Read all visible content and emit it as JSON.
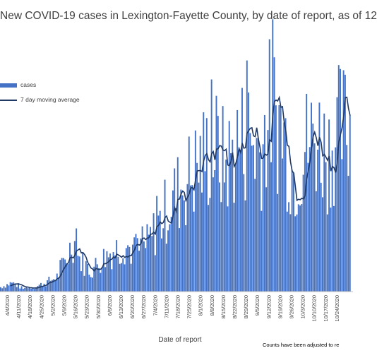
{
  "chart_data": {
    "type": "bar",
    "title": "New COVID-19 cases in Lexington-Fayette County, by date of report, as of 12",
    "xlabel": "Date of report",
    "ylabel": "",
    "footnote": "Counts have been adjusted to re",
    "grid": false,
    "legend_position": "top-left",
    "x_tick_labels": [
      "4/4/2020",
      "4/11/2020",
      "4/18/2020",
      "4/25/2020",
      "5/2/2020",
      "5/9/2020",
      "5/16/2020",
      "5/23/2020",
      "5/30/2020",
      "6/6/2020",
      "6/13/2020",
      "6/20/2020",
      "6/27/2020",
      "7/4/2020",
      "7/11/2020",
      "7/18/2020",
      "7/25/2020",
      "8/1/2020",
      "8/8/2020",
      "8/15/2020",
      "8/22/2020",
      "8/29/2020",
      "9/5/2020",
      "9/12/2020",
      "9/19/2020",
      "9/26/2020",
      "10/3/2020",
      "10/10/2020",
      "10/17/2020",
      "10/24/2020"
    ],
    "series": [
      {
        "name": "cases",
        "kind": "bar",
        "color": "#4472C4",
        "anchors": [
          [
            0,
            3
          ],
          [
            7,
            6
          ],
          [
            14,
            2
          ],
          [
            21,
            3
          ],
          [
            28,
            6
          ],
          [
            35,
            10
          ],
          [
            42,
            25
          ],
          [
            45,
            35
          ],
          [
            49,
            22
          ],
          [
            56,
            14
          ],
          [
            63,
            22
          ],
          [
            70,
            28
          ],
          [
            77,
            32
          ],
          [
            84,
            26
          ],
          [
            91,
            32
          ],
          [
            98,
            45
          ],
          [
            105,
            60
          ],
          [
            112,
            70
          ],
          [
            119,
            80
          ],
          [
            126,
            90
          ],
          [
            133,
            98
          ],
          [
            140,
            85
          ],
          [
            147,
            100
          ],
          [
            154,
            105
          ],
          [
            161,
            95
          ],
          [
            168,
            125
          ],
          [
            175,
            110
          ],
          [
            182,
            78
          ],
          [
            189,
            98
          ],
          [
            196,
            105
          ],
          [
            203,
            95
          ],
          [
            210,
            108
          ],
          [
            217,
            112
          ]
        ]
      },
      {
        "name": "7 day moving average",
        "kind": "line",
        "color": "#1F3864"
      }
    ]
  }
}
